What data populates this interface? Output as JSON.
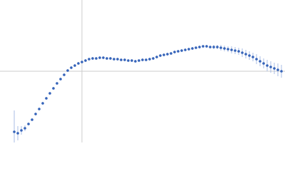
{
  "chart_data": {
    "type": "scatter",
    "xlim": [
      0,
      100
    ],
    "ylim": [
      0,
      100
    ],
    "reference_lines": {
      "x": 28.75,
      "y": 50
    },
    "color": "#3563b9",
    "error_color": "#a9bde6",
    "series": [
      {
        "x": [
          5,
          6.25,
          7.5,
          8.75,
          10,
          11.25,
          12.5,
          13.75,
          15,
          16.25,
          17.5,
          18.75,
          20,
          21.25,
          22.5,
          23.75,
          25,
          26.25,
          27.5,
          28.75,
          30,
          31.25,
          32.5,
          33.75,
          35,
          36.25,
          37.5,
          38.75,
          40,
          41.25,
          42.5,
          43.75,
          45,
          46.25,
          47.5,
          48.75,
          50,
          51.25,
          52.5,
          53.75,
          55,
          56.25,
          57.5,
          58.75,
          60,
          61.25,
          62.5,
          63.75,
          65,
          66.25,
          67.5,
          68.75,
          70,
          71.25,
          72.5,
          73.75,
          75,
          76.25,
          77.5,
          78.75,
          80,
          81.25,
          82.5,
          83.75,
          85,
          86.25,
          87.5,
          88.75,
          90,
          91.25,
          92.5,
          93.75,
          95,
          96.25,
          97.5,
          98.75
        ],
        "values": [
          7.5,
          6.5,
          8.5,
          10,
          13,
          16,
          20,
          23.5,
          27.5,
          31,
          34.5,
          38,
          41.5,
          44.5,
          47.5,
          50.5,
          52.5,
          54,
          55.5,
          56.5,
          57.5,
          58.5,
          59,
          59,
          59.5,
          59.5,
          59,
          59,
          58.5,
          58.5,
          58,
          58,
          57.5,
          57.5,
          57,
          57.5,
          58,
          58,
          58.5,
          59,
          60,
          61,
          61.5,
          62,
          62.5,
          63.5,
          64,
          64.5,
          65,
          65.5,
          66,
          66.5,
          67,
          67.5,
          67.5,
          67,
          67,
          67,
          66.5,
          66,
          65.5,
          65,
          64.5,
          64,
          63,
          62,
          61,
          60,
          58.5,
          57,
          55.5,
          54,
          53,
          52,
          51,
          50
        ],
        "errors": [
          15,
          5,
          3,
          2,
          1,
          1,
          1,
          1,
          1,
          1,
          1,
          1,
          1,
          1,
          1,
          1,
          1,
          1,
          1,
          1,
          1,
          1,
          1,
          1,
          1,
          1,
          1,
          1,
          1,
          1,
          1,
          1,
          1,
          1,
          1,
          1,
          1,
          1,
          1,
          1,
          1,
          1,
          1,
          1,
          1,
          1,
          1,
          1,
          1,
          1,
          1,
          1,
          1,
          1,
          1,
          1,
          1.5,
          1.5,
          2,
          2,
          2,
          2.5,
          2.5,
          2.5,
          3,
          3,
          3,
          3,
          3.5,
          3.5,
          3.5,
          4,
          4,
          4,
          4.5,
          4.5
        ]
      }
    ]
  }
}
